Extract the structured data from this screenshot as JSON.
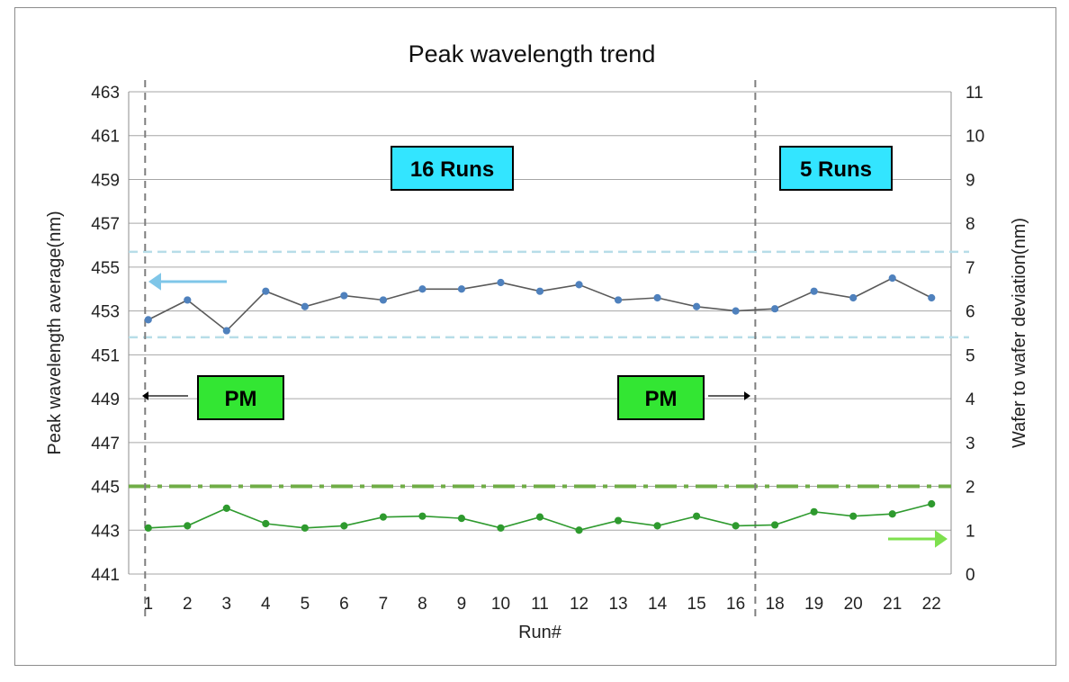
{
  "chart_data": {
    "type": "line",
    "title": "Peak wavelength trend",
    "xlabel": "Run#",
    "ylabel": "Peak wavelength average(nm)",
    "y2label": "Wafer to wafer deviation(nm)",
    "categories": [
      "1",
      "2",
      "3",
      "4",
      "5",
      "6",
      "7",
      "8",
      "9",
      "10",
      "11",
      "12",
      "13",
      "14",
      "15",
      "16",
      "18",
      "19",
      "20",
      "21",
      "22"
    ],
    "ylim": [
      441,
      463
    ],
    "yticks": [
      441,
      443,
      445,
      447,
      449,
      451,
      453,
      455,
      457,
      459,
      461,
      463
    ],
    "y2lim": [
      0,
      11
    ],
    "y2ticks": [
      0,
      1,
      2,
      3,
      4,
      5,
      6,
      7,
      8,
      9,
      10,
      11
    ],
    "grid": true,
    "series": [
      {
        "axis": "left",
        "color": "#5a5a5a",
        "marker_color": "#4f81bd",
        "values": [
          452.6,
          453.5,
          452.1,
          453.9,
          453.2,
          453.7,
          453.5,
          454.0,
          454.0,
          454.3,
          453.9,
          454.2,
          453.5,
          453.6,
          453.2,
          453.0,
          453.1,
          453.9,
          453.6,
          454.5,
          453.6
        ]
      },
      {
        "axis": "right",
        "color": "#2e9a2e",
        "marker_color": "#2e9a2e",
        "values": [
          1.05,
          1.1,
          1.5,
          1.15,
          1.05,
          1.1,
          1.3,
          1.32,
          1.27,
          1.05,
          1.3,
          1.0,
          1.22,
          1.1,
          1.32,
          1.1,
          1.12,
          1.42,
          1.32,
          1.37,
          1.6
        ]
      }
    ],
    "reference_lines": {
      "spec_upper_left": 455.7,
      "spec_lower_left": 451.8,
      "spec_color": "#b7dde8",
      "limit_right": 2.0,
      "limit_color": "#70ad47"
    },
    "dividers": [
      "1",
      "16|18"
    ],
    "annotations": [
      {
        "text": "16 Runs",
        "fill": "#33e5ff"
      },
      {
        "text": "5 Runs",
        "fill": "#33e5ff"
      },
      {
        "text": "PM",
        "fill": "#33e633"
      },
      {
        "text": "PM",
        "fill": "#33e633"
      }
    ],
    "arrow_colors": {
      "left_axis": "#7fc6e8",
      "right_axis": "#7ee04e",
      "pm": "#000000"
    }
  }
}
